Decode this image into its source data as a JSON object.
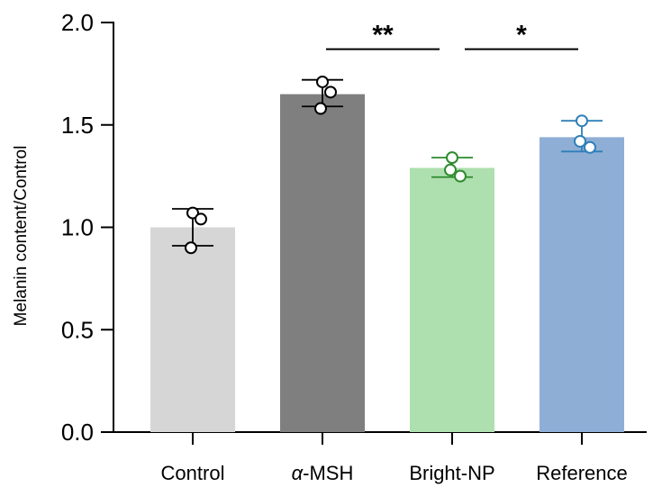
{
  "chart_data": {
    "type": "bar",
    "title": "",
    "xlabel": "",
    "ylabel": "Melanin content/Control",
    "ylim": [
      0,
      2.0
    ],
    "yticks": [
      0.0,
      0.5,
      1.0,
      1.5,
      2.0
    ],
    "ytick_labels": [
      "0.0",
      "0.5",
      "1.0",
      "1.5",
      "2.0"
    ],
    "categories": [
      {
        "prefix": "",
        "italic": "",
        "suffix": "Control"
      },
      {
        "prefix": "",
        "italic": "α",
        "suffix": "-MSH"
      },
      {
        "prefix": "",
        "italic": "",
        "suffix": "Bright-NP"
      },
      {
        "prefix": "",
        "italic": "",
        "suffix": "Reference"
      }
    ],
    "values": [
      1.0,
      1.65,
      1.29,
      1.44
    ],
    "error_low": [
      0.91,
      1.59,
      1.245,
      1.37
    ],
    "error_high": [
      1.09,
      1.72,
      1.34,
      1.52
    ],
    "points": [
      [
        1.07,
        1.04,
        0.9
      ],
      [
        1.71,
        1.66,
        1.58
      ],
      [
        1.34,
        1.25,
        1.28
      ],
      [
        1.52,
        1.39,
        1.42
      ]
    ],
    "bar_colors": [
      "#d6d6d6",
      "#7f7f7f",
      "#aedfaf",
      "#8eaed6"
    ],
    "errorbar_colors": [
      "#000000",
      "#000000",
      "#2e8b2e",
      "#2f80b8"
    ],
    "significance": [
      {
        "from": 1,
        "to": 2,
        "label": "**",
        "y": 1.87
      },
      {
        "from": 2,
        "to": 3,
        "label": "*",
        "y": 1.87
      }
    ],
    "grid": false,
    "legend": "none"
  }
}
